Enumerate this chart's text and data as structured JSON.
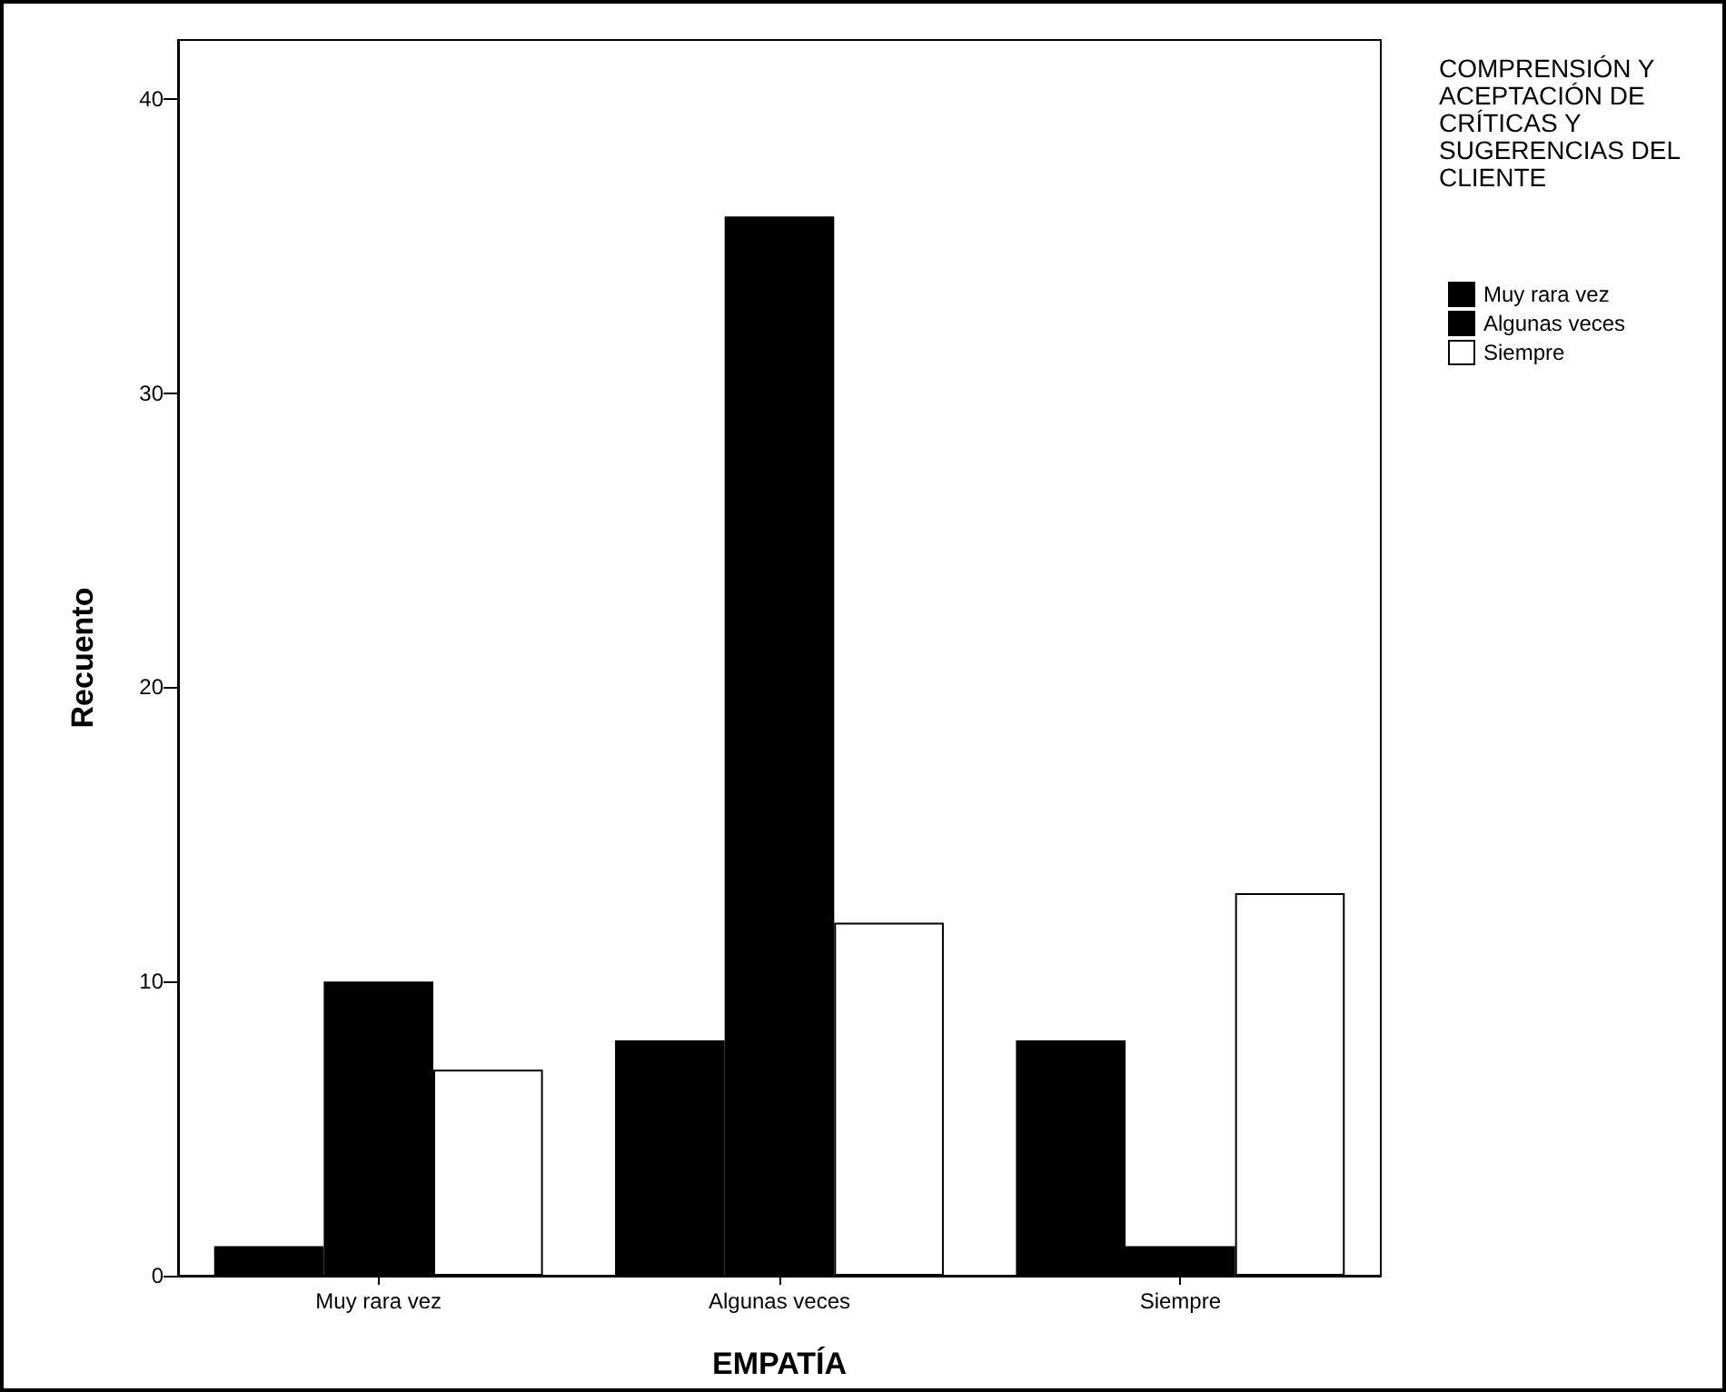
{
  "chart_data": {
    "type": "bar",
    "xlabel": "EMPATÍA",
    "ylabel": "Recuento",
    "legend_title": "COMPRENSIÓN Y ACEPTACIÓN DE CRÍTICAS Y SUGERENCIAS DEL CLIENTE",
    "categories": [
      "Muy rara vez",
      "Algunas veces",
      "Siempre"
    ],
    "series": [
      {
        "name": "Muy rara vez",
        "color": "#000000",
        "values": [
          1,
          8,
          8
        ]
      },
      {
        "name": "Algunas veces",
        "color": "#000000",
        "values": [
          10,
          36,
          1
        ]
      },
      {
        "name": "Siempre",
        "color": "#ffffff",
        "values": [
          7,
          12,
          13
        ]
      }
    ],
    "ylim": [
      0,
      42
    ],
    "yticks": [
      0,
      10,
      20,
      30,
      40
    ],
    "grid": false,
    "legend": "top right"
  }
}
